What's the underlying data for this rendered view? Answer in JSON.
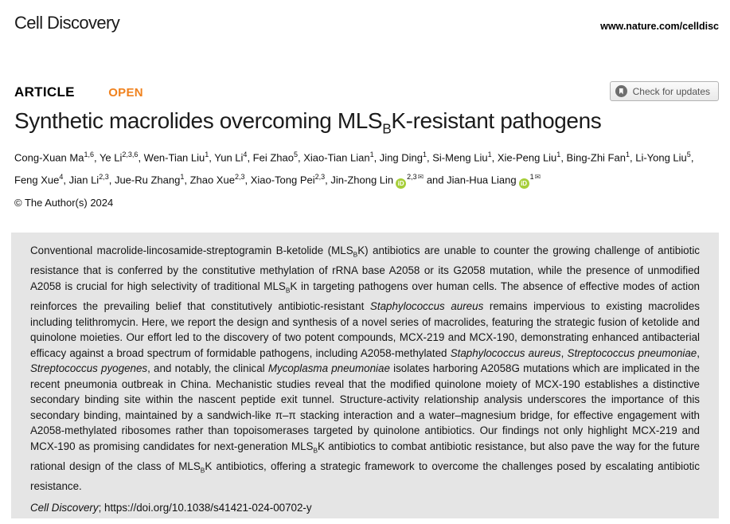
{
  "colors": {
    "open_accent": "#f0821e",
    "orcid_green": "#a6ce39",
    "abstract_bg": "#e5e5e5",
    "badge_text": "#555555"
  },
  "header": {
    "journal": "Cell Discovery",
    "site_url": "www.nature.com/celldisc"
  },
  "article_meta": {
    "type_label": "ARTICLE",
    "open_label": "OPEN",
    "check_updates_label": "Check for updates",
    "crossmark_icon": "bookmark-in-circle",
    "copyright": "© The Author(s) 2024"
  },
  "title": {
    "segments": [
      {
        "t": "Synthetic macrolides overcoming MLS"
      },
      {
        "t": "B",
        "s": "sub"
      },
      {
        "t": "K-resistant pathogens"
      }
    ]
  },
  "authors": {
    "segments": [
      {
        "t": "Cong-Xuan Ma"
      },
      {
        "t": "1,6",
        "s": "sup"
      },
      {
        "t": ", Ye Li"
      },
      {
        "t": "2,3,6",
        "s": "sup"
      },
      {
        "t": ", Wen-Tian Liu"
      },
      {
        "t": "1",
        "s": "sup"
      },
      {
        "t": ", Yun Li"
      },
      {
        "t": "4",
        "s": "sup"
      },
      {
        "t": ", Fei Zhao"
      },
      {
        "t": "5",
        "s": "sup"
      },
      {
        "t": ", Xiao-Tian Lian"
      },
      {
        "t": "1",
        "s": "sup"
      },
      {
        "t": ", Jing Ding"
      },
      {
        "t": "1",
        "s": "sup"
      },
      {
        "t": ", Si-Meng Liu"
      },
      {
        "t": "1",
        "s": "sup"
      },
      {
        "t": ", Xie-Peng Liu"
      },
      {
        "t": "1",
        "s": "sup"
      },
      {
        "t": ", Bing-Zhi Fan"
      },
      {
        "t": "1",
        "s": "sup"
      },
      {
        "t": ", Li-Yong Liu"
      },
      {
        "t": "5",
        "s": "sup"
      },
      {
        "t": ", Feng Xue"
      },
      {
        "t": "4",
        "s": "sup"
      },
      {
        "t": ", Jian Li"
      },
      {
        "t": "2,3",
        "s": "sup"
      },
      {
        "t": ", Jue-Ru Zhang"
      },
      {
        "t": "1",
        "s": "sup"
      },
      {
        "t": ", Zhao Xue"
      },
      {
        "t": "2,3",
        "s": "sup"
      },
      {
        "t": ", Xiao-Tong Pei"
      },
      {
        "t": "2,3",
        "s": "sup"
      },
      {
        "t": ", Jin-Zhong Lin"
      },
      {
        "s": "orcid"
      },
      {
        "t": "2,3",
        "s": "sup"
      },
      {
        "s": "email"
      },
      {
        "t": " and Jian-Hua Liang"
      },
      {
        "s": "orcid"
      },
      {
        "t": "1",
        "s": "sup"
      },
      {
        "s": "email"
      }
    ]
  },
  "abstract": {
    "segments": [
      {
        "t": "Conventional macrolide-lincosamide-streptogramin B-ketolide (MLS"
      },
      {
        "t": "B",
        "s": "sub"
      },
      {
        "t": "K) antibiotics are unable to counter the growing challenge of antibiotic resistance that is conferred by the constitutive methylation of rRNA base A2058 or its G2058 mutation, while the presence of unmodified A2058 is crucial for high selectivity of traditional MLS"
      },
      {
        "t": "B",
        "s": "sub"
      },
      {
        "t": "K in targeting pathogens over human cells. The absence of effective modes of action reinforces the prevailing belief that constitutively antibiotic-resistant "
      },
      {
        "t": "Staphylococcus aureus",
        "s": "italic"
      },
      {
        "t": " remains impervious to existing macrolides including telithromycin. Here, we report the design and synthesis of a novel series of macrolides, featuring the strategic fusion of ketolide and quinolone moieties. Our effort led to the discovery of two potent compounds, MCX-219 and MCX-190, demonstrating enhanced antibacterial efficacy against a broad spectrum of formidable pathogens, including A2058-methylated "
      },
      {
        "t": "Staphylococcus aureus",
        "s": "italic"
      },
      {
        "t": ", "
      },
      {
        "t": "Streptococcus pneumoniae",
        "s": "italic"
      },
      {
        "t": ", "
      },
      {
        "t": "Streptococcus pyogenes",
        "s": "italic"
      },
      {
        "t": ", and notably, the clinical "
      },
      {
        "t": "Mycoplasma pneumoniae",
        "s": "italic"
      },
      {
        "t": " isolates harboring A2058G mutations which are implicated in the recent pneumonia outbreak in China. Mechanistic studies reveal that the modified quinolone moiety of MCX-190 establishes a distinctive secondary binding site within the nascent peptide exit tunnel. Structure-activity relationship analysis underscores the importance of this secondary binding, maintained by a sandwich-like π–π stacking interaction and a water–magnesium bridge, for effective engagement with A2058-methylated ribosomes rather than topoisomerases targeted by quinolone antibiotics. Our findings not only highlight MCX-219 and MCX-190 as promising candidates for next-generation MLS"
      },
      {
        "t": "B",
        "s": "sub"
      },
      {
        "t": "K antibiotics to combat antibiotic resistance, but also pave the way for the future rational design of the class of MLS"
      },
      {
        "t": "B",
        "s": "sub"
      },
      {
        "t": "K antibiotics, offering a strategic framework to overcome the challenges posed by escalating antibiotic resistance."
      }
    ]
  },
  "citation": {
    "segments": [
      {
        "t": "Cell Discovery",
        "s": "italic"
      },
      {
        "t": "; https://doi.org/10.1038/s41421-024-00702-y"
      }
    ]
  }
}
